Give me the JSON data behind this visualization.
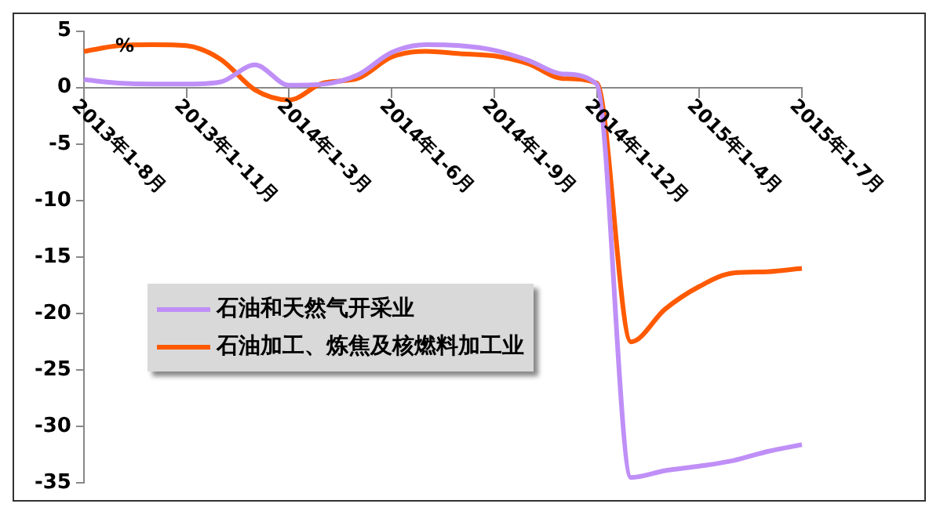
{
  "chart_data": {
    "type": "line",
    "ylabel": "%",
    "categories": [
      "2013年1-8月",
      null,
      null,
      "2013年1-11月",
      null,
      null,
      "2014年1-3月",
      null,
      null,
      "2014年1-6月",
      null,
      null,
      "2014年1-9月",
      null,
      null,
      "2014年1-12月",
      null,
      null,
      "2015年1-4月",
      null,
      null,
      "2015年1-7月"
    ],
    "series": [
      {
        "name": "石油和天然气开采业",
        "color": "#bf8ff7",
        "values": [
          0.7,
          0.4,
          0.3,
          0.3,
          0.5,
          2.0,
          0.2,
          0.3,
          1.1,
          3.1,
          3.8,
          3.7,
          3.3,
          2.4,
          1.2,
          0.3,
          -34.5,
          -33.9,
          -33.5,
          -33.0,
          -32.2,
          -31.6
        ]
      },
      {
        "name": "石油加工、炼焦及核燃料加工业",
        "color": "#ff5a00",
        "values": [
          3.2,
          3.7,
          3.8,
          3.7,
          2.5,
          -0.2,
          -1.1,
          0.4,
          0.8,
          2.7,
          3.2,
          3.0,
          2.8,
          2.1,
          0.8,
          0.4,
          -22.5,
          -19.6,
          -17.6,
          -16.4,
          -16.3,
          -16.0
        ]
      }
    ],
    "ylim": [
      -35,
      5
    ],
    "yticks": [
      -35,
      -30,
      -25,
      -20,
      -15,
      -10,
      -5,
      0,
      5
    ],
    "grid": false,
    "legend": "left",
    "marker": "none",
    "line_style": "solid"
  }
}
